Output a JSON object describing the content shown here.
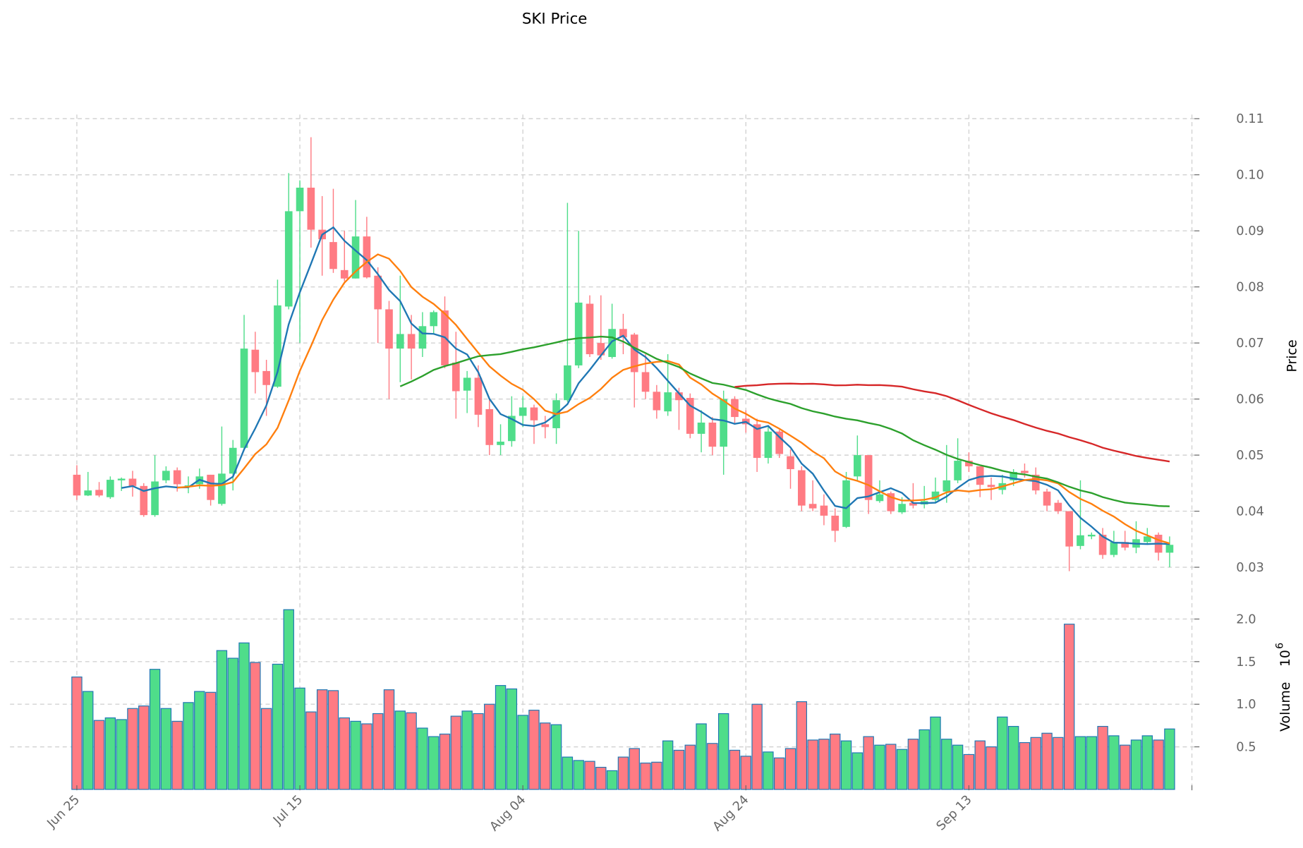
{
  "chart_data": {
    "type": "candlestick",
    "title": "SKI Price",
    "price_ylabel": "Price",
    "volume_ylabel": "Volume",
    "volume_multiplier": "10",
    "volume_exponent": "6",
    "price_ylim": [
      0.03,
      0.11
    ],
    "price_yticks": [
      "0.03",
      "0.04",
      "0.05",
      "0.06",
      "0.07",
      "0.08",
      "0.09",
      "0.10",
      "0.11"
    ],
    "volume_yticks": [
      "0.5",
      "1.0",
      "1.5",
      "2.0"
    ],
    "x_ticks": [
      {
        "label": "Jun 25",
        "day": 0
      },
      {
        "label": "Jul 15",
        "day": 20
      },
      {
        "label": "Aug 04",
        "day": 40
      },
      {
        "label": "Aug 24",
        "day": 60
      },
      {
        "label": "Sep 13",
        "day": 80
      },
      {
        "label": "",
        "day": 100
      }
    ],
    "grid": true,
    "colors": {
      "up": "#4fdd8a",
      "down": "#ff7b83",
      "volume_edge": "#1f77b4",
      "ma_short": "#1f77b4",
      "ma_mid": "#ff7f0e",
      "ma_long": "#2ca02c",
      "ma_longest": "#d62728"
    },
    "moving_average_windows": [
      5,
      10,
      30,
      60
    ],
    "candle_fields": [
      "open",
      "high",
      "low",
      "close",
      "volume_millions"
    ],
    "candles": [
      [
        0.0465,
        0.0482,
        0.042,
        0.0428,
        1.32
      ],
      [
        0.0428,
        0.047,
        0.0427,
        0.0437,
        1.15
      ],
      [
        0.0438,
        0.0452,
        0.0425,
        0.0428,
        0.81
      ],
      [
        0.0425,
        0.0462,
        0.0422,
        0.0456,
        0.84
      ],
      [
        0.0455,
        0.046,
        0.0436,
        0.0458,
        0.82
      ],
      [
        0.0458,
        0.0472,
        0.0426,
        0.0445,
        0.95
      ],
      [
        0.0445,
        0.045,
        0.039,
        0.0393,
        0.98
      ],
      [
        0.0393,
        0.05,
        0.039,
        0.0453,
        1.41
      ],
      [
        0.0455,
        0.048,
        0.045,
        0.0472,
        0.95
      ],
      [
        0.0473,
        0.0478,
        0.0435,
        0.0448,
        0.8
      ],
      [
        0.0444,
        0.0462,
        0.0432,
        0.0446,
        1.02
      ],
      [
        0.0448,
        0.0476,
        0.044,
        0.0462,
        1.15
      ],
      [
        0.0465,
        0.0465,
        0.041,
        0.042,
        1.14
      ],
      [
        0.0413,
        0.0551,
        0.041,
        0.0467,
        1.63
      ],
      [
        0.0467,
        0.0527,
        0.0437,
        0.0513,
        1.54
      ],
      [
        0.0513,
        0.075,
        0.051,
        0.069,
        1.72
      ],
      [
        0.0688,
        0.072,
        0.061,
        0.0648,
        1.49
      ],
      [
        0.065,
        0.067,
        0.057,
        0.0625,
        0.95
      ],
      [
        0.0622,
        0.0813,
        0.062,
        0.0767,
        1.47
      ],
      [
        0.0765,
        0.1003,
        0.076,
        0.0935,
        2.11
      ],
      [
        0.0935,
        0.099,
        0.07,
        0.0977,
        1.19
      ],
      [
        0.0977,
        0.1067,
        0.087,
        0.0902,
        0.91
      ],
      [
        0.0902,
        0.0962,
        0.082,
        0.0885,
        1.17
      ],
      [
        0.088,
        0.0975,
        0.0825,
        0.0832,
        1.16
      ],
      [
        0.083,
        0.09,
        0.081,
        0.0815,
        0.84
      ],
      [
        0.0815,
        0.0955,
        0.0815,
        0.089,
        0.8
      ],
      [
        0.089,
        0.0925,
        0.0815,
        0.0817,
        0.77
      ],
      [
        0.082,
        0.0835,
        0.07,
        0.076,
        0.89
      ],
      [
        0.076,
        0.0775,
        0.06,
        0.069,
        1.17
      ],
      [
        0.069,
        0.082,
        0.063,
        0.0716,
        0.92
      ],
      [
        0.0716,
        0.075,
        0.0635,
        0.069,
        0.9
      ],
      [
        0.069,
        0.0755,
        0.0675,
        0.073,
        0.72
      ],
      [
        0.073,
        0.0758,
        0.0715,
        0.0755,
        0.62
      ],
      [
        0.0758,
        0.0783,
        0.0655,
        0.066,
        0.65
      ],
      [
        0.0665,
        0.072,
        0.0565,
        0.0614,
        0.86
      ],
      [
        0.0615,
        0.065,
        0.0575,
        0.0638,
        0.92
      ],
      [
        0.0638,
        0.066,
        0.055,
        0.0572,
        0.89
      ],
      [
        0.0582,
        0.06,
        0.05,
        0.0518,
        1.0
      ],
      [
        0.0518,
        0.0555,
        0.05,
        0.0524,
        1.22
      ],
      [
        0.0525,
        0.0605,
        0.0515,
        0.057,
        1.18
      ],
      [
        0.057,
        0.0605,
        0.055,
        0.0585,
        0.87
      ],
      [
        0.0585,
        0.059,
        0.052,
        0.0562,
        0.93
      ],
      [
        0.0555,
        0.057,
        0.053,
        0.055,
        0.78
      ],
      [
        0.0548,
        0.061,
        0.052,
        0.0598,
        0.76
      ],
      [
        0.0598,
        0.095,
        0.0595,
        0.066,
        0.38
      ],
      [
        0.066,
        0.09,
        0.0655,
        0.0772,
        0.34
      ],
      [
        0.077,
        0.0785,
        0.0675,
        0.068,
        0.33
      ],
      [
        0.07,
        0.0785,
        0.067,
        0.0678,
        0.26
      ],
      [
        0.0675,
        0.077,
        0.0672,
        0.0725,
        0.22
      ],
      [
        0.0725,
        0.0752,
        0.068,
        0.071,
        0.38
      ],
      [
        0.0715,
        0.0718,
        0.0585,
        0.0648,
        0.48
      ],
      [
        0.0648,
        0.068,
        0.06,
        0.0613,
        0.31
      ],
      [
        0.0613,
        0.0625,
        0.0565,
        0.058,
        0.32
      ],
      [
        0.0578,
        0.068,
        0.057,
        0.0612,
        0.57
      ],
      [
        0.0612,
        0.062,
        0.0545,
        0.0598,
        0.46
      ],
      [
        0.0602,
        0.061,
        0.053,
        0.0538,
        0.52
      ],
      [
        0.0538,
        0.058,
        0.0505,
        0.0558,
        0.77
      ],
      [
        0.0558,
        0.0568,
        0.05,
        0.0515,
        0.54
      ],
      [
        0.0515,
        0.0615,
        0.0465,
        0.06,
        0.89
      ],
      [
        0.06,
        0.0605,
        0.0555,
        0.0568,
        0.46
      ],
      [
        0.0565,
        0.058,
        0.054,
        0.0555,
        0.39
      ],
      [
        0.0555,
        0.0565,
        0.047,
        0.0495,
        1.0
      ],
      [
        0.0495,
        0.055,
        0.0485,
        0.0542,
        0.44
      ],
      [
        0.0542,
        0.0545,
        0.0495,
        0.0502,
        0.37
      ],
      [
        0.0498,
        0.051,
        0.044,
        0.0475,
        0.48
      ],
      [
        0.0473,
        0.048,
        0.04,
        0.041,
        1.03
      ],
      [
        0.0413,
        0.0455,
        0.04,
        0.0405,
        0.58
      ],
      [
        0.041,
        0.043,
        0.0375,
        0.0392,
        0.59
      ],
      [
        0.0392,
        0.0405,
        0.0345,
        0.0365,
        0.65
      ],
      [
        0.0372,
        0.047,
        0.037,
        0.0455,
        0.57
      ],
      [
        0.0462,
        0.0535,
        0.0455,
        0.05,
        0.43
      ],
      [
        0.05,
        0.05,
        0.0395,
        0.042,
        0.62
      ],
      [
        0.0418,
        0.0455,
        0.0415,
        0.043,
        0.52
      ],
      [
        0.0432,
        0.0435,
        0.0395,
        0.04,
        0.53
      ],
      [
        0.0398,
        0.0425,
        0.0395,
        0.0413,
        0.47
      ],
      [
        0.0415,
        0.045,
        0.0405,
        0.041,
        0.59
      ],
      [
        0.0412,
        0.0445,
        0.0405,
        0.0418,
        0.7
      ],
      [
        0.042,
        0.046,
        0.0415,
        0.0435,
        0.85
      ],
      [
        0.0435,
        0.0518,
        0.0415,
        0.0455,
        0.59
      ],
      [
        0.0455,
        0.053,
        0.045,
        0.049,
        0.52
      ],
      [
        0.049,
        0.0505,
        0.047,
        0.048,
        0.41
      ],
      [
        0.048,
        0.048,
        0.0425,
        0.0447,
        0.57
      ],
      [
        0.0447,
        0.046,
        0.042,
        0.0443,
        0.5
      ],
      [
        0.0438,
        0.0465,
        0.043,
        0.045,
        0.85
      ],
      [
        0.0455,
        0.0475,
        0.0445,
        0.047,
        0.74
      ],
      [
        0.0472,
        0.0485,
        0.046,
        0.0468,
        0.55
      ],
      [
        0.0465,
        0.0478,
        0.043,
        0.0437,
        0.61
      ],
      [
        0.0435,
        0.044,
        0.04,
        0.041,
        0.66
      ],
      [
        0.0415,
        0.042,
        0.0395,
        0.04,
        0.61
      ],
      [
        0.04,
        0.04,
        0.0293,
        0.0337,
        1.94
      ],
      [
        0.0338,
        0.0455,
        0.0332,
        0.0357,
        0.62
      ],
      [
        0.0355,
        0.0362,
        0.035,
        0.0358,
        0.62
      ],
      [
        0.0358,
        0.037,
        0.0315,
        0.0322,
        0.74
      ],
      [
        0.0322,
        0.0365,
        0.0318,
        0.0345,
        0.63
      ],
      [
        0.0345,
        0.0365,
        0.033,
        0.0335,
        0.52
      ],
      [
        0.0335,
        0.0382,
        0.0325,
        0.035,
        0.58
      ],
      [
        0.0345,
        0.037,
        0.034,
        0.0355,
        0.63
      ],
      [
        0.0358,
        0.0362,
        0.0312,
        0.0326,
        0.58
      ],
      [
        0.0326,
        0.0355,
        0.03,
        0.034,
        0.71
      ]
    ]
  }
}
